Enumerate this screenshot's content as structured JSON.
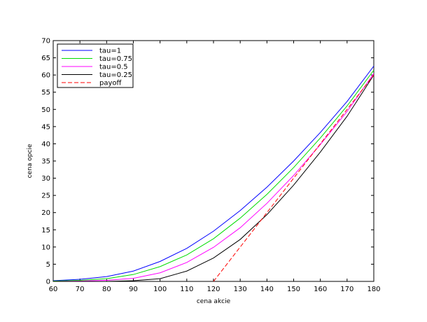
{
  "chart_data": {
    "type": "line",
    "title": "",
    "xlabel": "cena akcie",
    "ylabel": "cena opcie",
    "xlim": [
      60,
      180
    ],
    "ylim": [
      0,
      70
    ],
    "xticks": [
      60,
      70,
      80,
      90,
      100,
      110,
      120,
      130,
      140,
      150,
      160,
      170,
      180
    ],
    "yticks": [
      0,
      5,
      10,
      15,
      20,
      25,
      30,
      35,
      40,
      45,
      50,
      55,
      60,
      65,
      70
    ],
    "grid": false,
    "legend_position": "top-left",
    "x": [
      60,
      70,
      80,
      90,
      100,
      110,
      120,
      130,
      140,
      150,
      160,
      170,
      180
    ],
    "series": [
      {
        "name": "tau=1",
        "color": "#0000ff",
        "dash": "solid",
        "values": [
          0.2,
          0.6,
          1.4,
          3.0,
          5.8,
          9.6,
          14.6,
          20.6,
          27.4,
          35.0,
          43.3,
          52.3,
          62.6
        ]
      },
      {
        "name": "tau=0.75",
        "color": "#00dd00",
        "dash": "solid",
        "values": [
          0.1,
          0.3,
          0.8,
          2.0,
          4.3,
          7.7,
          12.4,
          18.4,
          25.3,
          33.1,
          41.7,
          51.0,
          61.4
        ]
      },
      {
        "name": "tau=0.5",
        "color": "#ff00ff",
        "dash": "solid",
        "values": [
          0.0,
          0.1,
          0.3,
          0.9,
          2.5,
          5.5,
          9.9,
          15.6,
          22.7,
          30.8,
          39.8,
          49.4,
          60.4
        ]
      },
      {
        "name": "tau=0.25",
        "color": "#000000",
        "dash": "solid",
        "values": [
          0.0,
          0.0,
          0.0,
          0.2,
          0.8,
          3.0,
          6.8,
          12.2,
          19.4,
          28.0,
          37.6,
          48.0,
          60.0
        ]
      },
      {
        "name": "payoff",
        "color": "#ff0000",
        "dash": "dashed",
        "values": [
          null,
          null,
          null,
          null,
          null,
          null,
          0,
          10,
          20,
          30,
          40,
          50,
          60
        ]
      }
    ]
  }
}
